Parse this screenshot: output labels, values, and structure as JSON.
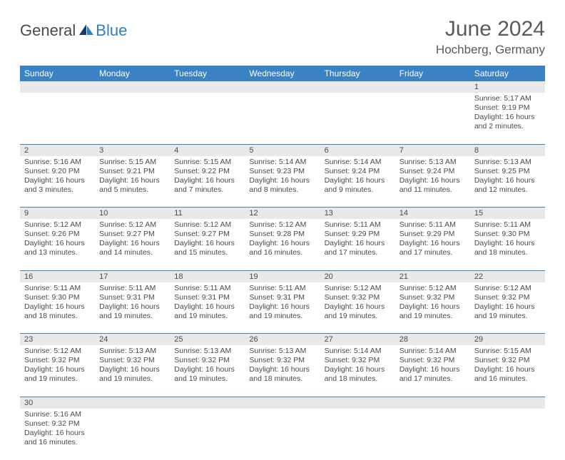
{
  "logo": {
    "text1": "General",
    "text2": "Blue"
  },
  "title": "June 2024",
  "location": "Hochberg, Germany",
  "header_bg": "#3a82c4",
  "header_fg": "#ffffff",
  "daynum_bg": "#e9e9e9",
  "border_color": "#3a82c4",
  "text_color": "#4a4a4a",
  "logo_accent": "#2b7fc3",
  "weekdays": [
    "Sunday",
    "Monday",
    "Tuesday",
    "Wednesday",
    "Thursday",
    "Friday",
    "Saturday"
  ],
  "weeks": [
    [
      null,
      null,
      null,
      null,
      null,
      null,
      {
        "n": "1",
        "sr": "5:17 AM",
        "ss": "9:19 PM",
        "dl": "16 hours and 2 minutes."
      }
    ],
    [
      {
        "n": "2",
        "sr": "5:16 AM",
        "ss": "9:20 PM",
        "dl": "16 hours and 3 minutes."
      },
      {
        "n": "3",
        "sr": "5:15 AM",
        "ss": "9:21 PM",
        "dl": "16 hours and 5 minutes."
      },
      {
        "n": "4",
        "sr": "5:15 AM",
        "ss": "9:22 PM",
        "dl": "16 hours and 7 minutes."
      },
      {
        "n": "5",
        "sr": "5:14 AM",
        "ss": "9:23 PM",
        "dl": "16 hours and 8 minutes."
      },
      {
        "n": "6",
        "sr": "5:14 AM",
        "ss": "9:24 PM",
        "dl": "16 hours and 9 minutes."
      },
      {
        "n": "7",
        "sr": "5:13 AM",
        "ss": "9:24 PM",
        "dl": "16 hours and 11 minutes."
      },
      {
        "n": "8",
        "sr": "5:13 AM",
        "ss": "9:25 PM",
        "dl": "16 hours and 12 minutes."
      }
    ],
    [
      {
        "n": "9",
        "sr": "5:12 AM",
        "ss": "9:26 PM",
        "dl": "16 hours and 13 minutes."
      },
      {
        "n": "10",
        "sr": "5:12 AM",
        "ss": "9:27 PM",
        "dl": "16 hours and 14 minutes."
      },
      {
        "n": "11",
        "sr": "5:12 AM",
        "ss": "9:27 PM",
        "dl": "16 hours and 15 minutes."
      },
      {
        "n": "12",
        "sr": "5:12 AM",
        "ss": "9:28 PM",
        "dl": "16 hours and 16 minutes."
      },
      {
        "n": "13",
        "sr": "5:11 AM",
        "ss": "9:29 PM",
        "dl": "16 hours and 17 minutes."
      },
      {
        "n": "14",
        "sr": "5:11 AM",
        "ss": "9:29 PM",
        "dl": "16 hours and 17 minutes."
      },
      {
        "n": "15",
        "sr": "5:11 AM",
        "ss": "9:30 PM",
        "dl": "16 hours and 18 minutes."
      }
    ],
    [
      {
        "n": "16",
        "sr": "5:11 AM",
        "ss": "9:30 PM",
        "dl": "16 hours and 18 minutes."
      },
      {
        "n": "17",
        "sr": "5:11 AM",
        "ss": "9:31 PM",
        "dl": "16 hours and 19 minutes."
      },
      {
        "n": "18",
        "sr": "5:11 AM",
        "ss": "9:31 PM",
        "dl": "16 hours and 19 minutes."
      },
      {
        "n": "19",
        "sr": "5:11 AM",
        "ss": "9:31 PM",
        "dl": "16 hours and 19 minutes."
      },
      {
        "n": "20",
        "sr": "5:12 AM",
        "ss": "9:32 PM",
        "dl": "16 hours and 19 minutes."
      },
      {
        "n": "21",
        "sr": "5:12 AM",
        "ss": "9:32 PM",
        "dl": "16 hours and 19 minutes."
      },
      {
        "n": "22",
        "sr": "5:12 AM",
        "ss": "9:32 PM",
        "dl": "16 hours and 19 minutes."
      }
    ],
    [
      {
        "n": "23",
        "sr": "5:12 AM",
        "ss": "9:32 PM",
        "dl": "16 hours and 19 minutes."
      },
      {
        "n": "24",
        "sr": "5:13 AM",
        "ss": "9:32 PM",
        "dl": "16 hours and 19 minutes."
      },
      {
        "n": "25",
        "sr": "5:13 AM",
        "ss": "9:32 PM",
        "dl": "16 hours and 19 minutes."
      },
      {
        "n": "26",
        "sr": "5:13 AM",
        "ss": "9:32 PM",
        "dl": "16 hours and 18 minutes."
      },
      {
        "n": "27",
        "sr": "5:14 AM",
        "ss": "9:32 PM",
        "dl": "16 hours and 18 minutes."
      },
      {
        "n": "28",
        "sr": "5:14 AM",
        "ss": "9:32 PM",
        "dl": "16 hours and 17 minutes."
      },
      {
        "n": "29",
        "sr": "5:15 AM",
        "ss": "9:32 PM",
        "dl": "16 hours and 16 minutes."
      }
    ],
    [
      {
        "n": "30",
        "sr": "5:16 AM",
        "ss": "9:32 PM",
        "dl": "16 hours and 16 minutes."
      },
      null,
      null,
      null,
      null,
      null,
      null
    ]
  ],
  "labels": {
    "sunrise": "Sunrise:",
    "sunset": "Sunset:",
    "daylight": "Daylight:"
  }
}
